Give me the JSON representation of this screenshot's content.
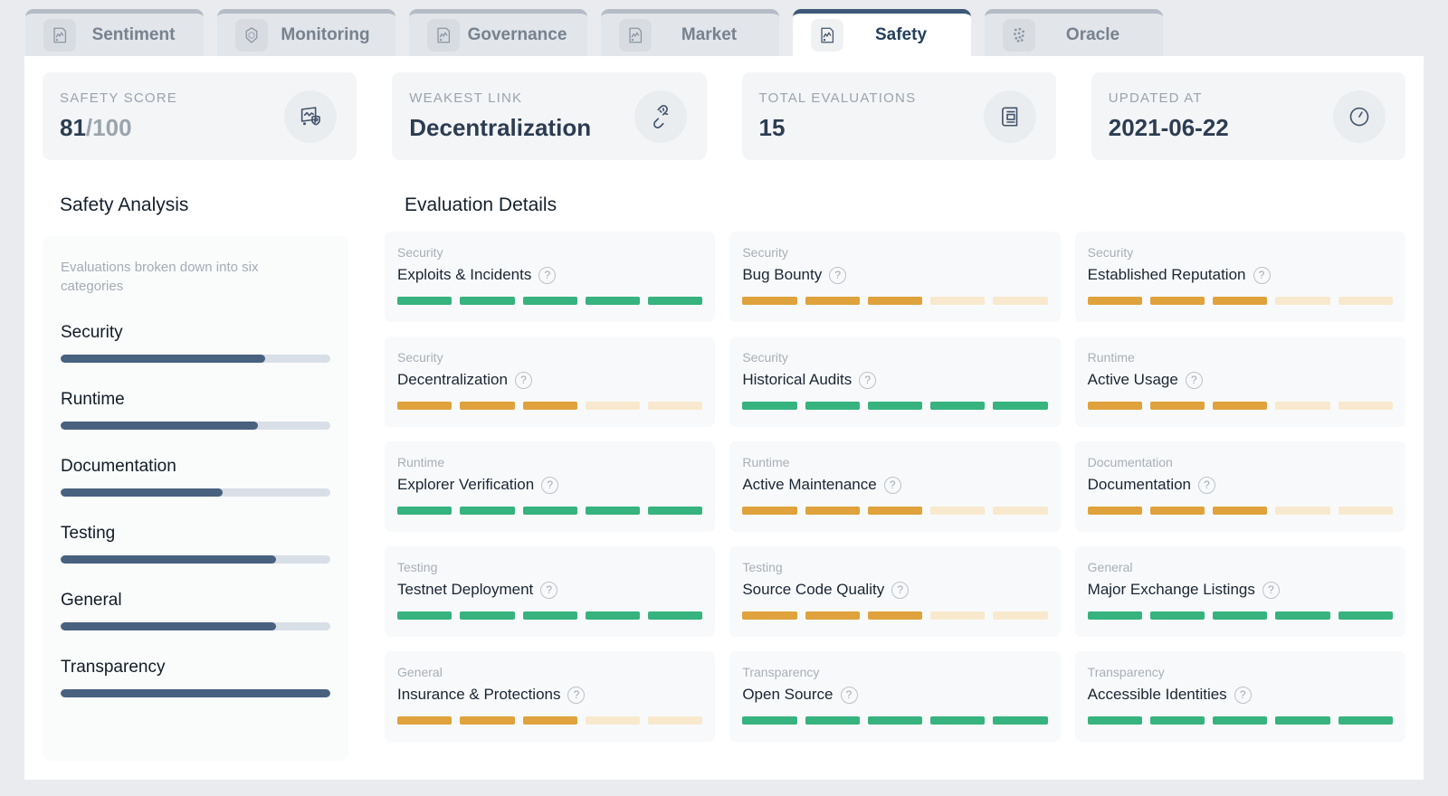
{
  "colors": {
    "navy": "#3d5878",
    "navyfill": "#48617f",
    "track": "#d9dfe7",
    "green": "#36b37e",
    "amber": "#dfa23c",
    "empty": "#f8e9ce"
  },
  "icons": {
    "question": "?"
  },
  "tabs": [
    {
      "label": "Sentiment",
      "icon": "doc-chart-icon",
      "active": false
    },
    {
      "label": "Monitoring",
      "icon": "cube-icon",
      "active": false
    },
    {
      "label": "Governance",
      "icon": "doc-chart-icon",
      "active": false
    },
    {
      "label": "Market",
      "icon": "doc-chart-icon",
      "active": false
    },
    {
      "label": "Safety",
      "icon": "doc-chart-icon",
      "active": true
    },
    {
      "label": "Oracle",
      "icon": "dots-icon",
      "active": false
    }
  ],
  "stats": [
    {
      "label": "SAFETY SCORE",
      "value": "81",
      "suffix": "/100",
      "icon": "safety-score-icon"
    },
    {
      "label": "WEAKEST LINK",
      "value": "Decentralization",
      "icon": "broken-link-icon"
    },
    {
      "label": "TOTAL EVALUATIONS",
      "value": "15",
      "icon": "evaluations-icon"
    },
    {
      "label": "UPDATED AT",
      "value": "2021-06-22",
      "icon": "clock-icon"
    }
  ],
  "analysis": {
    "title": "Safety Analysis",
    "description": "Evaluations broken down into six categories",
    "categories": [
      {
        "name": "Security",
        "percent": 76
      },
      {
        "name": "Runtime",
        "percent": 73
      },
      {
        "name": "Documentation",
        "percent": 60
      },
      {
        "name": "Testing",
        "percent": 80
      },
      {
        "name": "General",
        "percent": 80
      },
      {
        "name": "Transparency",
        "percent": 100
      }
    ]
  },
  "evaluations": {
    "title": "Evaluation Details",
    "items": [
      {
        "category": "Security",
        "name": "Exploits & Incidents",
        "score": 5,
        "max": 5,
        "color": "green"
      },
      {
        "category": "Security",
        "name": "Bug Bounty",
        "score": 3,
        "max": 5,
        "color": "amber"
      },
      {
        "category": "Security",
        "name": "Established Reputation",
        "score": 3,
        "max": 5,
        "color": "amber"
      },
      {
        "category": "Security",
        "name": "Decentralization",
        "score": 3,
        "max": 5,
        "color": "amber"
      },
      {
        "category": "Security",
        "name": "Historical Audits",
        "score": 5,
        "max": 5,
        "color": "green"
      },
      {
        "category": "Runtime",
        "name": "Active Usage",
        "score": 3,
        "max": 5,
        "color": "amber"
      },
      {
        "category": "Runtime",
        "name": "Explorer Verification",
        "score": 5,
        "max": 5,
        "color": "green"
      },
      {
        "category": "Runtime",
        "name": "Active Maintenance",
        "score": 3,
        "max": 5,
        "color": "amber"
      },
      {
        "category": "Documentation",
        "name": "Documentation",
        "score": 3,
        "max": 5,
        "color": "amber"
      },
      {
        "category": "Testing",
        "name": "Testnet Deployment",
        "score": 5,
        "max": 5,
        "color": "green"
      },
      {
        "category": "Testing",
        "name": "Source Code Quality",
        "score": 3,
        "max": 5,
        "color": "amber"
      },
      {
        "category": "General",
        "name": "Major Exchange Listings",
        "score": 5,
        "max": 5,
        "color": "green"
      },
      {
        "category": "General",
        "name": "Insurance & Protections",
        "score": 3,
        "max": 5,
        "color": "amber"
      },
      {
        "category": "Transparency",
        "name": "Open Source",
        "score": 5,
        "max": 5,
        "color": "green"
      },
      {
        "category": "Transparency",
        "name": "Accessible Identities",
        "score": 5,
        "max": 5,
        "color": "green"
      }
    ]
  }
}
